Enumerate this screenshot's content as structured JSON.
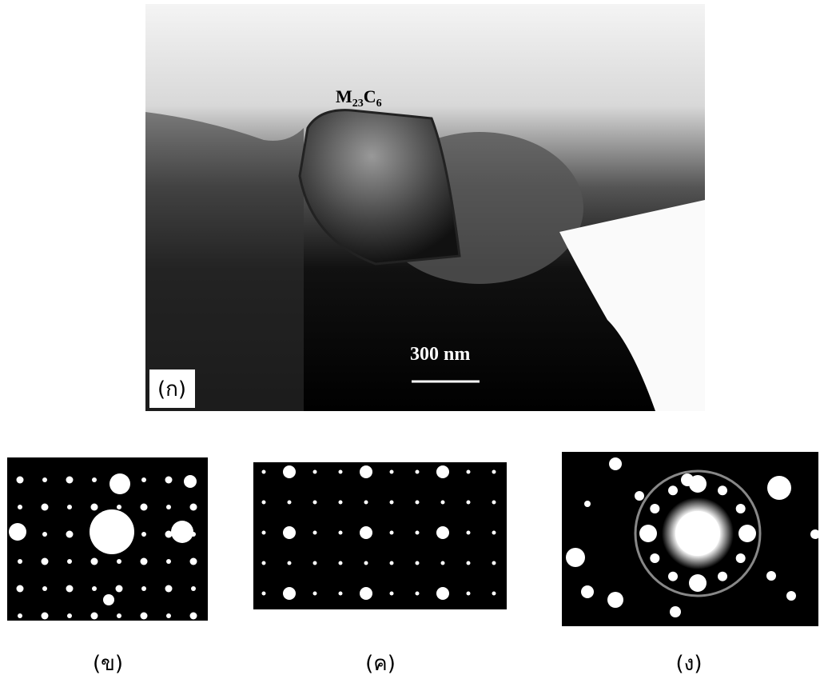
{
  "figure": {
    "main_image": {
      "annotation": {
        "parts": [
          "M",
          "23",
          "C",
          "6"
        ]
      },
      "scale_bar": "300 nm",
      "label": "(ก)"
    },
    "panels": [
      {
        "label": "(ข)"
      },
      {
        "label": "(ค)"
      },
      {
        "label": "(ง)"
      }
    ]
  }
}
